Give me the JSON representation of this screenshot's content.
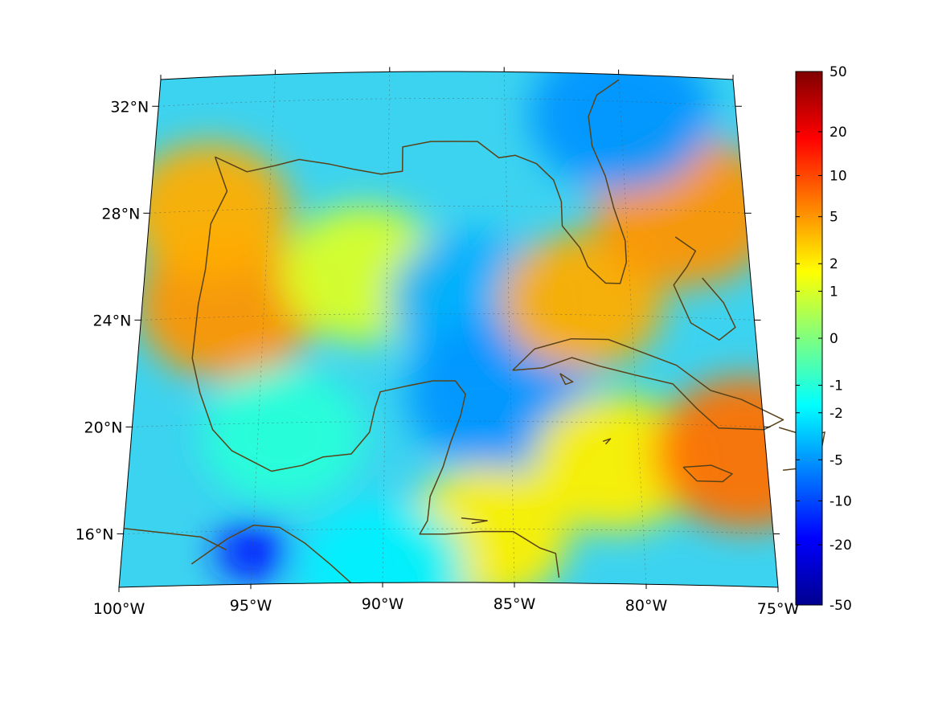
{
  "map": {
    "projection": "lambert-conic",
    "lon_range": [
      -100,
      -75
    ],
    "lat_range": [
      14,
      33
    ],
    "coastline_color": "#5a4218",
    "grid": true,
    "lon_ticks": [
      {
        "value": -100,
        "label": "100°W"
      },
      {
        "value": -95,
        "label": "95°W"
      },
      {
        "value": -90,
        "label": "90°W"
      },
      {
        "value": -85,
        "label": "85°W"
      },
      {
        "value": -80,
        "label": "80°W"
      },
      {
        "value": -75,
        "label": "75°W"
      }
    ],
    "lat_ticks": [
      {
        "value": 32,
        "label": "32°N"
      },
      {
        "value": 28,
        "label": "28°N"
      },
      {
        "value": 24,
        "label": "24°N"
      },
      {
        "value": 20,
        "label": "20°N"
      },
      {
        "value": 16,
        "label": "16°N"
      }
    ],
    "regions": [
      {
        "name": "western-gulf-warm",
        "lon": -96.5,
        "lat": 24.5,
        "value": 5
      },
      {
        "name": "texas-coast",
        "lon": -97.5,
        "lat": 28,
        "value": 4
      },
      {
        "name": "central-gulf",
        "lon": -91,
        "lat": 25.5,
        "value": 1
      },
      {
        "name": "eastern-gulf-cold",
        "lon": -86.5,
        "lat": 24.5,
        "value": -4
      },
      {
        "name": "yucatan-channel",
        "lon": -85.5,
        "lat": 21,
        "value": -5
      },
      {
        "name": "florida-straits-warm",
        "lon": -82,
        "lat": 24.5,
        "value": 4
      },
      {
        "name": "atlantic-ne-warm",
        "lon": -77.5,
        "lat": 28,
        "value": 5
      },
      {
        "name": "georgia-coast-cold",
        "lon": -80,
        "lat": 31.5,
        "value": -5
      },
      {
        "name": "bay-of-campeche",
        "lon": -94,
        "lat": 19.5,
        "value": -1
      },
      {
        "name": "tehuantepec-cold",
        "lon": -95,
        "lat": 15.2,
        "value": -15
      },
      {
        "name": "caribbean-warm",
        "lon": -81,
        "lat": 18.5,
        "value": 2
      },
      {
        "name": "windward-passage-warm",
        "lon": -75.8,
        "lat": 19,
        "value": 7
      },
      {
        "name": "honduras-coast-warm",
        "lon": -86,
        "lat": 15.8,
        "value": 2
      },
      {
        "name": "pacific-south",
        "lon": -90,
        "lat": 14.5,
        "value": -2
      }
    ]
  },
  "colorbar": {
    "colormap": "jet",
    "scale": "symmetric-log",
    "range": [
      -50,
      50
    ],
    "tick_labels": [
      "50",
      "20",
      "10",
      "5",
      "2",
      "1",
      "0",
      "-1",
      "-2",
      "-5",
      "-10",
      "-20",
      "-50"
    ],
    "tick_values": [
      50,
      20,
      10,
      5,
      2,
      1,
      0,
      -1,
      -2,
      -5,
      -10,
      -20,
      -50
    ]
  }
}
